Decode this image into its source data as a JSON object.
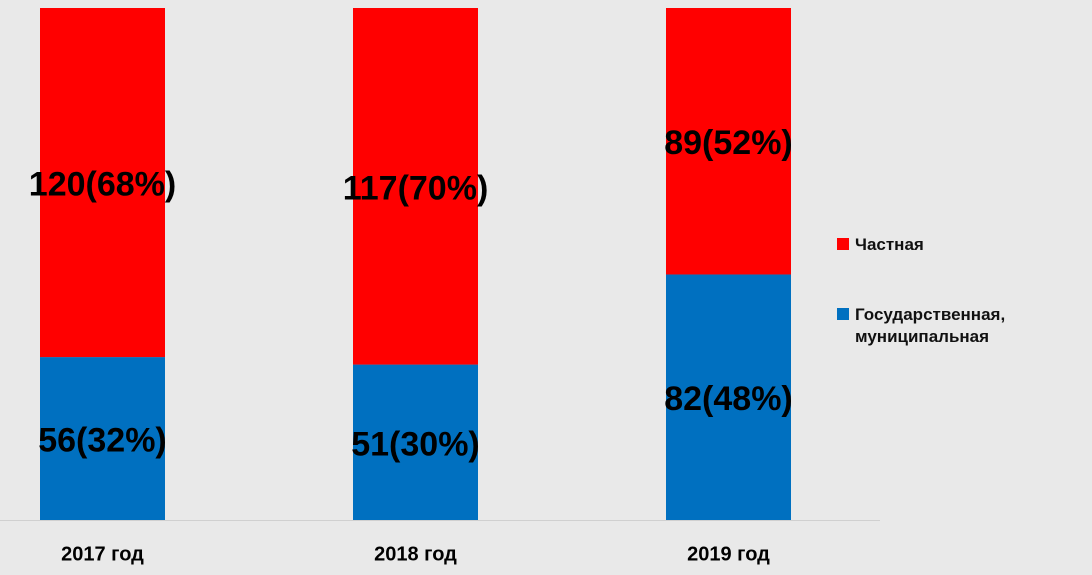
{
  "chart_data": {
    "type": "bar",
    "stacking": "percent",
    "categories": [
      "2017 год",
      "2018 год",
      "2019 год"
    ],
    "series": [
      {
        "name": "Государственная, муниципальная",
        "color": "#0070c0",
        "values": [
          56,
          51,
          82
        ],
        "value_labels": [
          "56(32%)",
          "51(30%)",
          "82(48%)"
        ]
      },
      {
        "name": "Частная",
        "color": "#ff0000",
        "values": [
          120,
          117,
          89
        ],
        "value_labels": [
          "120(68%)",
          "117(70%)",
          "89(52%)"
        ]
      }
    ],
    "legend": "right"
  }
}
